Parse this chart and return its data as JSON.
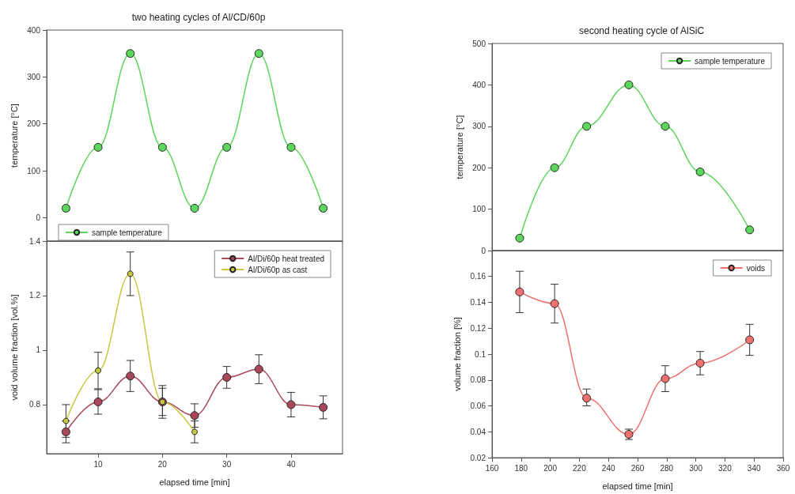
{
  "chart_data": [
    {
      "type": "line",
      "title": "two heating cycles of Al/CD/60p",
      "ylabel": "temperature [°C]",
      "x": [
        5,
        10,
        15,
        20,
        25,
        30,
        35,
        40,
        45
      ],
      "xlim": [
        2,
        48
      ],
      "xticks": [
        10,
        20,
        30,
        40
      ],
      "ylim": [
        -50,
        400
      ],
      "yticks": [
        0,
        100,
        200,
        300,
        400
      ],
      "tick_labels": "y",
      "legend": "bottom left",
      "marker": "circle",
      "line_style": "solid",
      "grid": false,
      "series": [
        {
          "name": "sample temperature",
          "color": "#5cd65c",
          "values": [
            20,
            150,
            350,
            150,
            20,
            150,
            350,
            150,
            20
          ]
        }
      ]
    },
    {
      "type": "line",
      "xlabel": "elapsed time [min]",
      "ylabel": "void volume fraction [vol.%]",
      "x": [
        5,
        10,
        15,
        20,
        25,
        30,
        35,
        40,
        45
      ],
      "xlim": [
        2,
        48
      ],
      "xticks": [
        10,
        20,
        30,
        40
      ],
      "ylim": [
        0.62,
        1.4
      ],
      "yticks": [
        0.8,
        1.0,
        1.2,
        1.4
      ],
      "legend": "top right",
      "marker": "circle",
      "line_style": "solid",
      "grid": false,
      "series": [
        {
          "name": "Al/Di/60p heat treated",
          "color": "#a84858",
          "values": [
            0.7,
            0.81,
            0.905,
            0.81,
            0.76,
            0.9,
            0.93,
            0.8,
            0.79
          ],
          "errors": [
            0.04,
            0.045,
            0.057,
            0.05,
            0.043,
            0.04,
            0.053,
            0.045,
            0.042
          ]
        },
        {
          "name": "Al/Di/60p as cast",
          "color": "#c8c840",
          "x": [
            5,
            10,
            15,
            20,
            25
          ],
          "values": [
            0.74,
            0.925,
            1.28,
            0.81,
            0.7
          ],
          "errors": [
            0.06,
            0.067,
            0.08,
            0.06,
            0.04
          ]
        }
      ]
    },
    {
      "type": "line",
      "title": "second heating cycle of AlSiC",
      "ylabel": "temperature [°C]",
      "x": [
        179,
        203,
        225,
        254,
        279,
        303,
        337
      ],
      "xlim": [
        160,
        360
      ],
      "xticks": [
        160,
        180,
        200,
        220,
        240,
        260,
        280,
        300,
        320,
        340,
        360
      ],
      "ylim": [
        0,
        500
      ],
      "yticks": [
        0,
        100,
        200,
        300,
        400,
        500
      ],
      "tick_labels": "y",
      "legend": "top right",
      "marker": "circle",
      "line_style": "solid",
      "grid": false,
      "series": [
        {
          "name": "sample temperature",
          "color": "#5cd65c",
          "values": [
            30,
            200,
            300,
            400,
            300,
            190,
            50
          ]
        }
      ]
    },
    {
      "type": "line",
      "xlabel": "elapsed time [min]",
      "ylabel": "volume fraction [%]",
      "x": [
        179,
        203,
        225,
        254,
        279,
        303,
        337
      ],
      "xlim": [
        160,
        360
      ],
      "xticks": [
        160,
        180,
        200,
        220,
        240,
        260,
        280,
        300,
        320,
        340,
        360
      ],
      "ylim": [
        0.02,
        0.18
      ],
      "yticks": [
        0.02,
        0.04,
        0.06,
        0.08,
        0.1,
        0.12,
        0.14,
        0.16
      ],
      "legend": "top right",
      "marker": "circle",
      "line_style": "solid",
      "grid": false,
      "series": [
        {
          "name": "voids",
          "color": "#f07070",
          "values": [
            0.148,
            0.139,
            0.066,
            0.038,
            0.081,
            0.093,
            0.111
          ],
          "errors": [
            0.016,
            0.015,
            [
              0.06,
              0.073
            ],
            0.004,
            0.01,
            0.009,
            0.012
          ]
        }
      ]
    }
  ]
}
